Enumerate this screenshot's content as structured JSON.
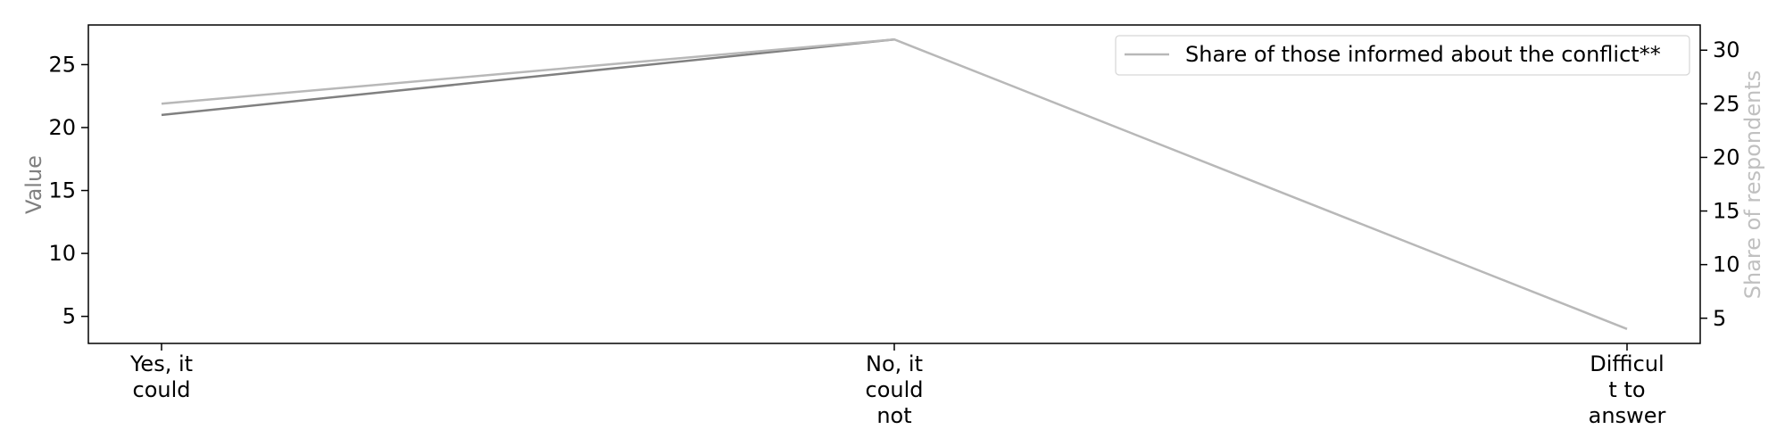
{
  "chart_data": {
    "type": "line",
    "categories": [
      [
        "Yes, it",
        "could"
      ],
      [
        "No, it",
        "could",
        "not"
      ],
      [
        "Difficul",
        "t to",
        "answer"
      ]
    ],
    "series": [
      {
        "name": "",
        "axis": "left",
        "values": [
          21,
          27,
          null
        ],
        "color": "#808080"
      },
      {
        "name": "Share of those informed about the conflict**",
        "axis": "right",
        "values": [
          25,
          31,
          4
        ],
        "color": "#b8b8b8"
      }
    ],
    "ylabel": "Value",
    "ylabel_color": "#808080",
    "y2label": "Share of respondents",
    "y2label_color": "#c0c0c0",
    "ylim": [
      2.85,
      28.15
    ],
    "y2lim": [
      2.65,
      32.35
    ],
    "yticks": [
      5,
      10,
      15,
      20,
      25
    ],
    "y2ticks": [
      5,
      10,
      15,
      20,
      25,
      30
    ],
    "legend_position": "top-right",
    "grid": false
  }
}
